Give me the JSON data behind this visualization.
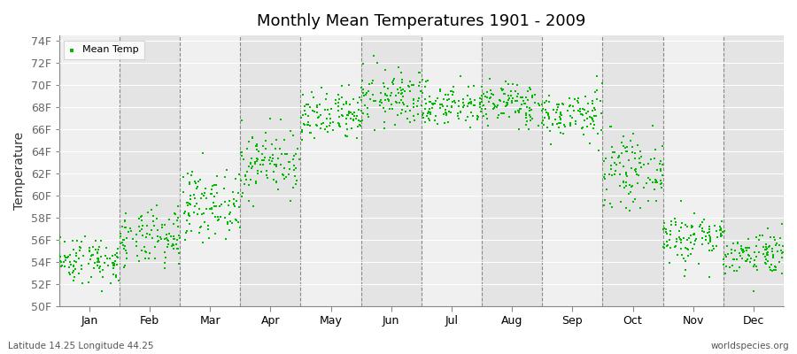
{
  "title": "Monthly Mean Temperatures 1901 - 2009",
  "ylabel": "Temperature",
  "xlabel_labels": [
    "Jan",
    "Feb",
    "Mar",
    "Apr",
    "May",
    "Jun",
    "Jul",
    "Aug",
    "Sep",
    "Oct",
    "Nov",
    "Dec"
  ],
  "ylim": [
    50,
    74.5
  ],
  "yticks": [
    50,
    52,
    54,
    56,
    58,
    60,
    62,
    64,
    66,
    68,
    70,
    72,
    74
  ],
  "ytick_labels": [
    "50F",
    "52F",
    "54F",
    "56F",
    "58F",
    "60F",
    "62F",
    "64F",
    "66F",
    "68F",
    "70F",
    "72F",
    "74F"
  ],
  "dot_color": "#00BB00",
  "dot_size": 3,
  "bg_color": "#FFFFFF",
  "plot_bg_color": "#F0F0F0",
  "plot_bg_alt_color": "#E4E4E4",
  "legend_label": "Mean Temp",
  "footer_left": "Latitude 14.25 Longitude 44.25",
  "footer_right": "worldspecies.org",
  "monthly_means": [
    54.2,
    56.0,
    59.2,
    63.0,
    67.0,
    68.8,
    68.2,
    68.3,
    67.3,
    62.2,
    56.2,
    54.8
  ],
  "monthly_stds": [
    1.1,
    1.3,
    1.5,
    1.5,
    1.2,
    1.3,
    1.0,
    1.0,
    1.1,
    1.5,
    1.2,
    1.0
  ],
  "n_years": 109,
  "seed": 42
}
